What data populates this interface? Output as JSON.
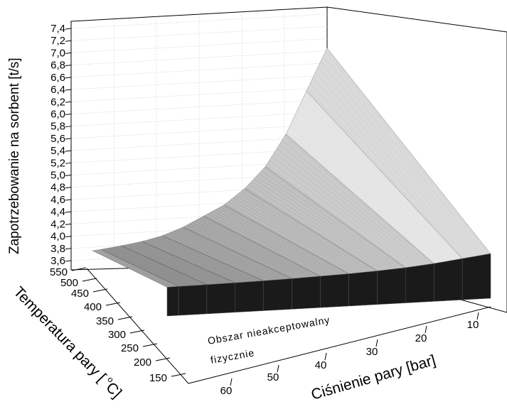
{
  "chart_data": {
    "type": "surface3d",
    "zlabel": "Zapotrzebowanie na sorbent [t/s]",
    "xlabel": "Ciśnienie pary [bar]",
    "ylabel": "Temperatura pary [ °C]",
    "ylabel_main": "Temperatura pary [",
    "ylabel_sup": "o",
    "ylabel_end": "C]",
    "annotation_line1": "Obszar nieakceptowalny",
    "annotation_line2": "fizycznie",
    "z_ticks": [
      "3,6",
      "3,8",
      "4,0",
      "4,2",
      "4,4",
      "4,6",
      "4,8",
      "5,0",
      "5,2",
      "5,4",
      "5,6",
      "5,8",
      "6,0",
      "6,2",
      "6,4",
      "6,6",
      "6,8",
      "7,0",
      "7,2",
      "7,4"
    ],
    "zlim": [
      3.5,
      7.4
    ],
    "y_ticks": [
      "550",
      "500",
      "450",
      "400",
      "350",
      "300",
      "250",
      "200",
      "150"
    ],
    "ylim": [
      150,
      550
    ],
    "x_ticks": [
      "10",
      "20",
      "30",
      "40",
      "50",
      "60"
    ],
    "xlim": [
      5,
      62
    ],
    "pressure": [
      5,
      10,
      15,
      20,
      25,
      30,
      35,
      40,
      45,
      50,
      55,
      60,
      62
    ],
    "demand_at_550C": [
      7.4,
      6.6,
      5.8,
      5.2,
      4.8,
      4.5,
      4.3,
      4.1,
      3.95,
      3.85,
      3.78,
      3.72,
      3.7
    ],
    "grid": true
  }
}
